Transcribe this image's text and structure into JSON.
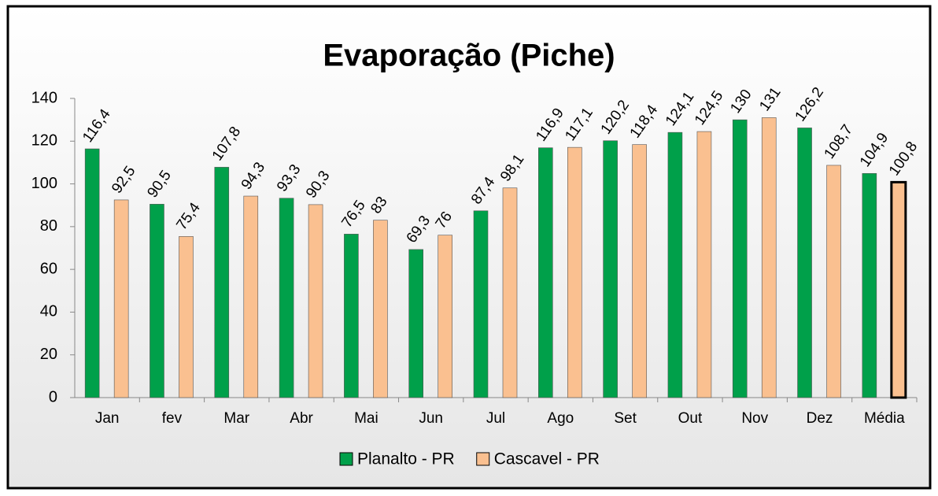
{
  "chart_data": {
    "type": "bar",
    "title": "Evaporação (Piche)",
    "categories": [
      "Jan",
      "fev",
      "Mar",
      "Abr",
      "Mai",
      "Jun",
      "Jul",
      "Ago",
      "Set",
      "Out",
      "Nov",
      "Dez",
      "Média"
    ],
    "series": [
      {
        "name": "Planalto - PR",
        "color": "#00a04a",
        "values": [
          116.4,
          90.5,
          107.8,
          93.3,
          76.5,
          69.3,
          87.4,
          116.9,
          120.2,
          124.1,
          130,
          126.2,
          104.9
        ],
        "value_labels": [
          "116,4",
          "90,5",
          "107,8",
          "93,3",
          "76,5",
          "69,3",
          "87,4",
          "116,9",
          "120,2",
          "124,1",
          "130",
          "126,2",
          "104,9"
        ]
      },
      {
        "name": "Cascavel - PR",
        "color": "#fac090",
        "values": [
          92.5,
          75.4,
          94.3,
          90.3,
          83,
          76,
          98.1,
          117.1,
          118.4,
          124.5,
          131,
          108.7,
          100.8
        ],
        "value_labels": [
          "92,5",
          "75,4",
          "94,3",
          "90,3",
          "83",
          "76",
          "98,1",
          "117,1",
          "118,4",
          "124,5",
          "131",
          "108,7",
          "100,8"
        ]
      }
    ],
    "ylim": [
      0,
      140
    ],
    "yticks": [
      0,
      20,
      40,
      60,
      80,
      100,
      120,
      140
    ],
    "legend": "bottom"
  }
}
